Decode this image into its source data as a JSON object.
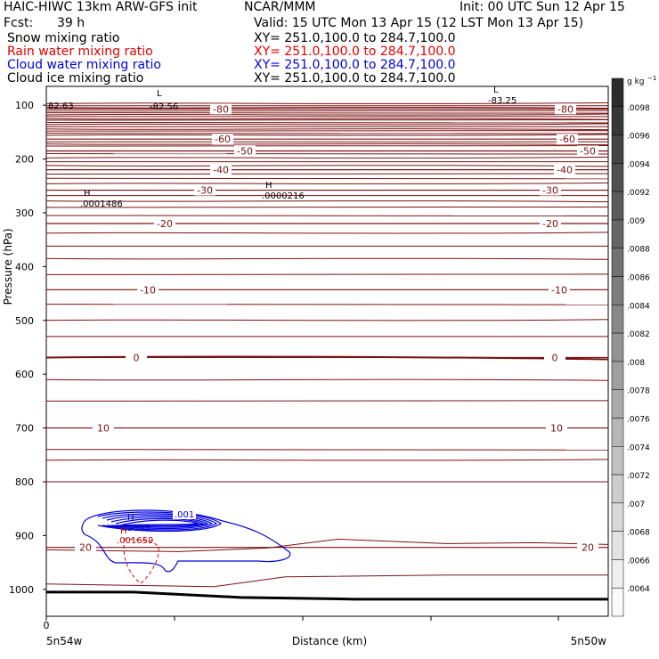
{
  "header": {
    "model": "HAIC-HIWC 13km ARW-GFS init",
    "org": "NCAR/MMM",
    "init": "Init: 00 UTC Sun 12 Apr 15",
    "fcst_label": "Fcst:",
    "fcst_value": "39 h",
    "valid": "Valid: 15 UTC Mon 13 Apr 15 (12 LST Mon 13 Apr 15)"
  },
  "fields": [
    {
      "name": "Snow mixing ratio",
      "xy": "XY= 251.0,100.0 to 284.7,100.0",
      "color": "#000000"
    },
    {
      "name": "Rain water mixing ratio",
      "xy": "XY= 251.0,100.0 to 284.7,100.0",
      "color": "#e00000"
    },
    {
      "name": "Cloud water mixing ratio",
      "xy": "XY= 251.0,100.0 to 284.7,100.0",
      "color": "#0000e0"
    },
    {
      "name": "Cloud ice mixing ratio",
      "xy": "XY= 251.0,100.0 to 284.7,100.0",
      "color": "#000000"
    }
  ],
  "chart_data": {
    "type": "contour",
    "title": "",
    "xlabel": "Distance (km)",
    "ylabel": "Pressure (hPa)",
    "x_ticks": [
      0
    ],
    "x_endpoints": [
      "5n54w",
      "5n50w"
    ],
    "yticks": [
      100,
      200,
      300,
      400,
      500,
      600,
      700,
      800,
      900,
      1000
    ],
    "ylim": [
      1050,
      65
    ],
    "colorbar": {
      "unit": "g kg",
      "unit_exp": "−1",
      "labels": [
        ".0098",
        ".0096",
        ".0094",
        ".0092",
        ".009",
        ".0088",
        ".0086",
        ".0084",
        ".0082",
        ".008",
        ".0078",
        ".0076",
        ".0074",
        ".0072",
        ".007",
        ".0068",
        ".0066",
        ".0064"
      ]
    },
    "temperature_contours": [
      {
        "value": "-80",
        "pressure": 107
      },
      {
        "value": "-60",
        "pressure": 163
      },
      {
        "value": "-50",
        "pressure": 185
      },
      {
        "value": "-40",
        "pressure": 220
      },
      {
        "value": "-30",
        "pressure": 258
      },
      {
        "value": "-20",
        "pressure": 320
      },
      {
        "value": "-10",
        "pressure": 443
      },
      {
        "value": "0",
        "pressure": 569
      },
      {
        "value": "10",
        "pressure": 700
      },
      {
        "value": "20",
        "pressure": 922
      }
    ],
    "extrema": [
      {
        "type": "L",
        "value": "-82.56"
      },
      {
        "type": "L",
        "value": "-83.25"
      },
      {
        "type": "H",
        "value": ".0001486"
      },
      {
        "type": "H",
        "value": ".0000216"
      },
      {
        "type": "H",
        "value": ".5369"
      },
      {
        "type": "H",
        "value": ".001659"
      }
    ],
    "left_edge_value": "82.63",
    "cloud_water_label": ".001"
  }
}
